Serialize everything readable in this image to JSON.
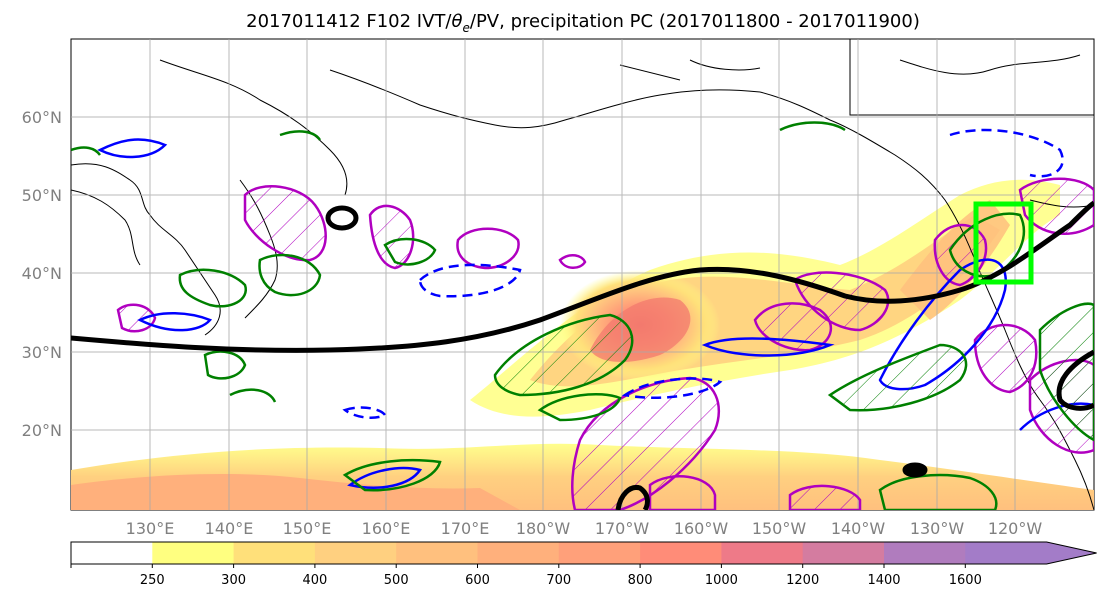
{
  "figure": {
    "title": "2017011412 F102 IVT/θe/PV, precipitation PC (2017011800 - 2017011900)",
    "title_prefix": "2017011412 F102 IVT/",
    "title_theta": "θ",
    "title_sub": "e",
    "title_suffix": "/PV, precipitation PC (2017011800 - 2017011900)"
  },
  "map": {
    "lat_labels": [
      "60°N",
      "50°N",
      "40°N",
      "30°N",
      "20°N"
    ],
    "lon_labels": [
      "130°E",
      "140°E",
      "150°E",
      "160°E",
      "170°E",
      "180°W",
      "170°W",
      "160°W",
      "150°W",
      "140°W",
      "130°W",
      "120°W"
    ],
    "grid": true,
    "projection": "PlateCarree",
    "lon_range": [
      120,
      250
    ],
    "lat_range": [
      10,
      70
    ],
    "contour_colors": {
      "trough_line": "#000000",
      "pv_hatch": "#b000c0",
      "theta_e_solid": "#0000ff",
      "theta_e_dashed": "#0000ff",
      "precip": "#008000",
      "target_box": "#00ff00"
    }
  },
  "colorbar": {
    "labels": [
      "250",
      "300",
      "400",
      "500",
      "600",
      "700",
      "800",
      "1000",
      "1200",
      "1400",
      "1600"
    ],
    "levels": [
      250,
      300,
      400,
      500,
      600,
      700,
      800,
      1000,
      1200,
      1400,
      1600
    ],
    "colors": [
      "#ffffff",
      "#ffff80",
      "#ffe07a",
      "#ffd080",
      "#ffc07e",
      "#ffb07c",
      "#ffa07a",
      "#ff8c78",
      "#ee7a88",
      "#d47ca0",
      "#b07cbe",
      "#a37cc8"
    ],
    "extend": "max"
  }
}
